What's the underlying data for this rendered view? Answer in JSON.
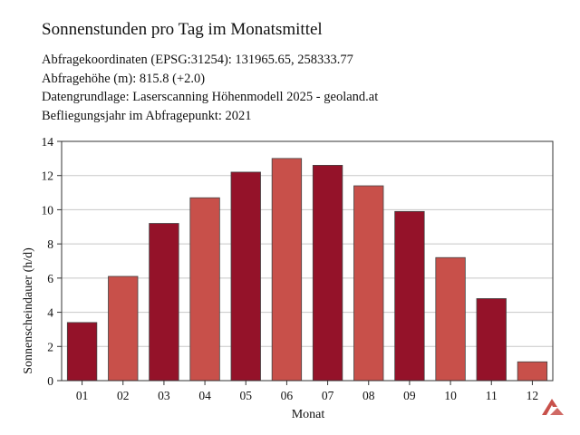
{
  "header": {
    "title": "Sonnenstunden pro Tag im Monatsmittel",
    "info_lines": [
      "Abfragekoordinaten (EPSG:31254): 131965.65, 258333.77",
      "Abfragehöhe (m): 815.8 (+2.0)",
      "Datengrundlage: Laserscanning Höhenmodell 2025 - geoland.at",
      "Befliegungsjahr im Abfragepunkt: 2021"
    ]
  },
  "chart_data": {
    "type": "bar",
    "title": "Sonnenstunden pro Tag im Monatsmittel",
    "xlabel": "Monat",
    "ylabel": "Sonnenscheindauer (h/d)",
    "categories": [
      "01",
      "02",
      "03",
      "04",
      "05",
      "06",
      "07",
      "08",
      "09",
      "10",
      "11",
      "12"
    ],
    "values": [
      3.4,
      6.1,
      9.2,
      10.7,
      12.2,
      13.0,
      12.6,
      11.4,
      9.9,
      7.2,
      4.8,
      1.1
    ],
    "ylim": [
      0,
      14
    ],
    "yticks": [
      0,
      2,
      4,
      6,
      8,
      10,
      12,
      14
    ],
    "grid": true,
    "colors": [
      "#941229",
      "#c8504a"
    ]
  },
  "logo": {
    "name": "logo-icon",
    "color": "#c8504a"
  }
}
